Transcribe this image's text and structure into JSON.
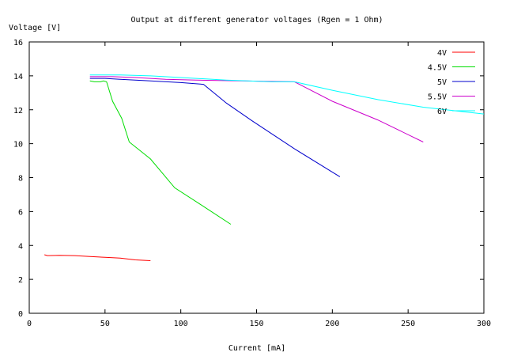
{
  "chart_data": {
    "type": "line",
    "title": "Output at different generator voltages (Rgen = 1 Ohm)",
    "xlabel": "Current [mA]",
    "ylabel": "Voltage [V]",
    "xlim": [
      0,
      300
    ],
    "ylim": [
      0,
      16
    ],
    "xticks": [
      0,
      50,
      100,
      150,
      200,
      250,
      300
    ],
    "yticks": [
      0,
      2,
      4,
      6,
      8,
      10,
      12,
      14,
      16
    ],
    "grid": false,
    "legend_position": "top-right",
    "series": [
      {
        "name": "4V",
        "color": "#ff0000",
        "points": [
          [
            10,
            3.45
          ],
          [
            12,
            3.4
          ],
          [
            20,
            3.42
          ],
          [
            30,
            3.4
          ],
          [
            40,
            3.35
          ],
          [
            50,
            3.3
          ],
          [
            60,
            3.25
          ],
          [
            70,
            3.15
          ],
          [
            80,
            3.1
          ]
        ]
      },
      {
        "name": "4.5V",
        "color": "#00dd00",
        "points": [
          [
            40,
            13.7
          ],
          [
            43,
            13.65
          ],
          [
            47,
            13.65
          ],
          [
            49,
            13.7
          ],
          [
            51,
            13.65
          ],
          [
            55,
            12.5
          ],
          [
            61,
            11.5
          ],
          [
            66,
            10.1
          ],
          [
            80,
            9.1
          ],
          [
            96,
            7.4
          ],
          [
            115,
            6.3
          ],
          [
            133,
            5.25
          ]
        ]
      },
      {
        "name": "5V",
        "color": "#0000cc",
        "points": [
          [
            40,
            13.85
          ],
          [
            50,
            13.85
          ],
          [
            60,
            13.8
          ],
          [
            70,
            13.75
          ],
          [
            80,
            13.7
          ],
          [
            100,
            13.6
          ],
          [
            115,
            13.5
          ],
          [
            130,
            12.4
          ],
          [
            147,
            11.35
          ],
          [
            175,
            9.7
          ],
          [
            205,
            8.05
          ]
        ]
      },
      {
        "name": "5.5V",
        "color": "#cc00cc",
        "points": [
          [
            40,
            13.95
          ],
          [
            55,
            13.95
          ],
          [
            70,
            13.9
          ],
          [
            90,
            13.8
          ],
          [
            110,
            13.75
          ],
          [
            140,
            13.7
          ],
          [
            175,
            13.65
          ],
          [
            200,
            12.5
          ],
          [
            230,
            11.4
          ],
          [
            260,
            10.1
          ]
        ]
      },
      {
        "name": "6V",
        "color": "#00ffff",
        "points": [
          [
            40,
            14.05
          ],
          [
            60,
            14.05
          ],
          [
            80,
            14.0
          ],
          [
            100,
            13.9
          ],
          [
            130,
            13.75
          ],
          [
            160,
            13.65
          ],
          [
            175,
            13.65
          ],
          [
            200,
            13.15
          ],
          [
            230,
            12.6
          ],
          [
            260,
            12.15
          ],
          [
            300,
            11.75
          ]
        ]
      }
    ]
  }
}
